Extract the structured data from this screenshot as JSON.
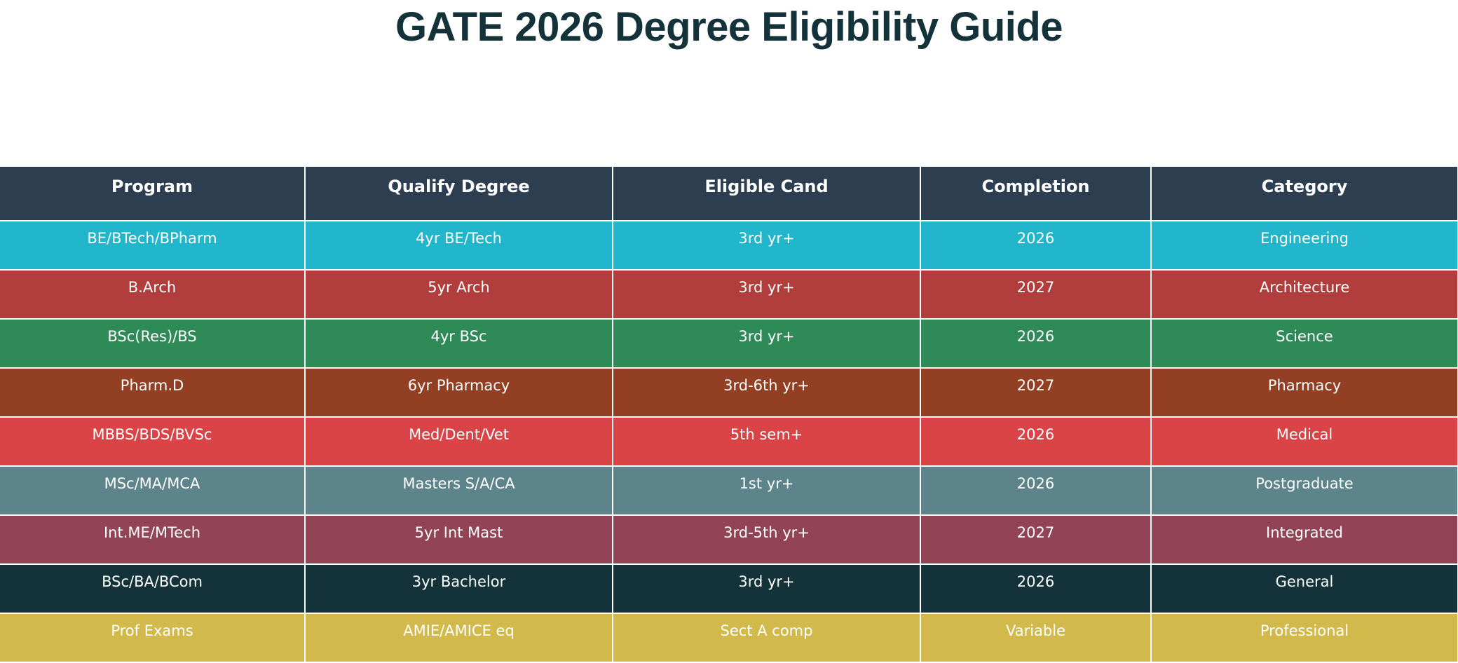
{
  "chart_data": {
    "type": "table",
    "title": "GATE 2026 Degree Eligibility Guide",
    "columns": [
      "Program",
      "Qualify Degree",
      "Eligible Cand",
      "Completion",
      "Category"
    ],
    "rows": [
      {
        "cells": [
          "BE/BTech/BPharm",
          "4yr BE/Tech",
          "3rd yr+",
          "2026",
          "Engineering"
        ],
        "color": "#22b6cc"
      },
      {
        "cells": [
          "B.Arch",
          "5yr Arch",
          "3rd yr+",
          "2027",
          "Architecture"
        ],
        "color": "#b23d3d"
      },
      {
        "cells": [
          "BSc(Res)/BS",
          "4yr BSc",
          "3rd yr+",
          "2026",
          "Science"
        ],
        "color": "#2e8a56"
      },
      {
        "cells": [
          "Pharm.D",
          "6yr Pharmacy",
          "3rd-6th yr+",
          "2027",
          "Pharmacy"
        ],
        "color": "#923f23"
      },
      {
        "cells": [
          "MBBS/BDS/BVSc",
          "Med/Dent/Vet",
          "5th sem+",
          "2026",
          "Medical"
        ],
        "color": "#da4446"
      },
      {
        "cells": [
          "MSc/MA/MCA",
          "Masters S/A/CA",
          "1st yr+",
          "2026",
          "Postgraduate"
        ],
        "color": "#5c848a"
      },
      {
        "cells": [
          "Int.ME/MTech",
          "5yr Int Mast",
          "3rd-5th yr+",
          "2027",
          "Integrated"
        ],
        "color": "#924456"
      },
      {
        "cells": [
          "BSc/BA/BCom",
          "3yr Bachelor",
          "3rd yr+",
          "2026",
          "General"
        ],
        "color": "#14323a"
      },
      {
        "cells": [
          "Prof Exams",
          "AMIE/AMICE eq",
          "Sect A comp",
          "Variable",
          "Professional"
        ],
        "color": "#d1b94b"
      }
    ]
  },
  "colors": {
    "title": "#14323a",
    "header_bg": "#2d3e50",
    "cell_text": "#ffffff",
    "grid_line": "#ffffff"
  }
}
